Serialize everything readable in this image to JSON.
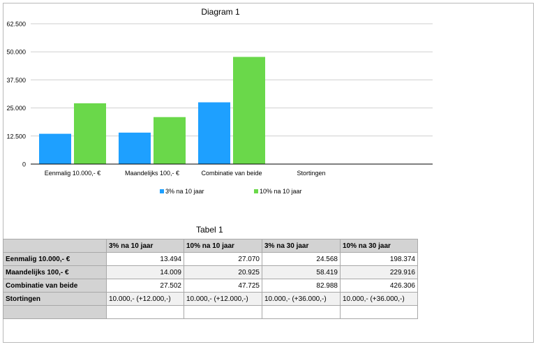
{
  "chart_data": {
    "type": "bar",
    "title": "Diagram 1",
    "categories": [
      "Eenmalig 10.000,- €",
      "Maandelijks 100,- €",
      "Combinatie van beide",
      "Stortingen"
    ],
    "series": [
      {
        "name": "3% na 10 jaar",
        "color": "#1ea0ff",
        "values": [
          13494,
          14009,
          27502,
          null
        ]
      },
      {
        "name": "10% na 10 jaar",
        "color": "#6ad84a",
        "values": [
          27070,
          20925,
          47725,
          null
        ]
      }
    ],
    "yticks": [
      "0",
      "12.500",
      "25.000",
      "37.500",
      "50.000",
      "62.500"
    ],
    "ylim": [
      0,
      62500
    ],
    "grid": true,
    "legend_position": "bottom"
  },
  "table": {
    "title": "Tabel 1",
    "headers": [
      "",
      "3% na 10 jaar",
      "10% na 10 jaar",
      "3% na 30 jaar",
      "10% na 30 jaar"
    ],
    "rows": [
      {
        "label": "Eenmalig 10.000,- €",
        "cells": [
          "13.494",
          "27.070",
          "24.568",
          "198.374"
        ]
      },
      {
        "label": "Maandelijks 100,- €",
        "cells": [
          "14.009",
          "20.925",
          "58.419",
          "229.916"
        ]
      },
      {
        "label": "Combinatie van beide",
        "cells": [
          "27.502",
          "47.725",
          "82.988",
          "426.306"
        ]
      },
      {
        "label": "Stortingen",
        "cells": [
          "10.000,- (+12.000,-)",
          "10.000,- (+12.000,-)",
          "10.000,- (+36.000,-)",
          "10.000,- (+36.000,-)"
        ]
      },
      {
        "label": "",
        "cells": [
          "",
          "",
          "",
          ""
        ]
      }
    ]
  }
}
